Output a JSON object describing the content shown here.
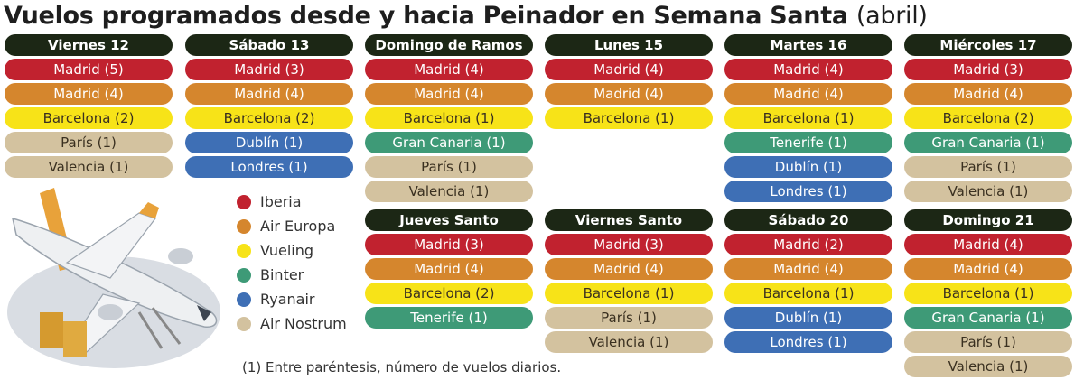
{
  "title": "Vuelos programados desde y hacia Peinador en Semana Santa",
  "title_suffix": "(abril)",
  "note": "(1) Entre paréntesis, número de vuelos diarios.",
  "airlines": {
    "iberia": {
      "label": "Iberia",
      "color": "#c1222f"
    },
    "aireuropa": {
      "label": "Air Europa",
      "color": "#d5862d"
    },
    "vueling": {
      "label": "Vueling",
      "color": "#f7e318"
    },
    "binter": {
      "label": "Binter",
      "color": "#3e9a77"
    },
    "ryanair": {
      "label": "Ryanair",
      "color": "#3e6fb5"
    },
    "airnostrum": {
      "label": "Air Nostrum",
      "color": "#d3c29f"
    }
  },
  "legend_order": [
    "iberia",
    "aireuropa",
    "vueling",
    "binter",
    "ryanair",
    "airnostrum"
  ],
  "days": [
    {
      "name": "Viernes 12",
      "flights": [
        {
          "label": "Madrid (5)",
          "airline": "iberia"
        },
        {
          "label": "Madrid (4)",
          "airline": "aireuropa"
        },
        {
          "label": "Barcelona (2)",
          "airline": "vueling"
        },
        {
          "label": "París (1)",
          "airline": "airnostrum"
        },
        {
          "label": "Valencia (1)",
          "airline": "airnostrum"
        }
      ]
    },
    {
      "name": "Sábado 13",
      "flights": [
        {
          "label": "Madrid (3)",
          "airline": "iberia"
        },
        {
          "label": "Madrid (4)",
          "airline": "aireuropa"
        },
        {
          "label": "Barcelona (2)",
          "airline": "vueling"
        },
        {
          "label": "Dublín (1)",
          "airline": "ryanair"
        },
        {
          "label": "Londres (1)",
          "airline": "ryanair"
        }
      ]
    },
    {
      "name": "Domingo de Ramos",
      "flights": [
        {
          "label": "Madrid (4)",
          "airline": "iberia"
        },
        {
          "label": "Madrid (4)",
          "airline": "aireuropa"
        },
        {
          "label": "Barcelona (1)",
          "airline": "vueling"
        },
        {
          "label": "Gran Canaria (1)",
          "airline": "binter"
        },
        {
          "label": "París (1)",
          "airline": "airnostrum"
        },
        {
          "label": "Valencia (1)",
          "airline": "airnostrum"
        }
      ]
    },
    {
      "name": "Lunes 15",
      "flights": [
        {
          "label": "Madrid (4)",
          "airline": "iberia"
        },
        {
          "label": "Madrid (4)",
          "airline": "aireuropa"
        },
        {
          "label": "Barcelona (1)",
          "airline": "vueling"
        }
      ]
    },
    {
      "name": "Martes 16",
      "flights": [
        {
          "label": "Madrid (4)",
          "airline": "iberia"
        },
        {
          "label": "Madrid (4)",
          "airline": "aireuropa"
        },
        {
          "label": "Barcelona (1)",
          "airline": "vueling"
        },
        {
          "label": "Tenerife (1)",
          "airline": "binter"
        },
        {
          "label": "Dublín (1)",
          "airline": "ryanair"
        },
        {
          "label": "Londres (1)",
          "airline": "ryanair"
        }
      ]
    },
    {
      "name": "Miércoles 17",
      "flights": [
        {
          "label": "Madrid (3)",
          "airline": "iberia"
        },
        {
          "label": "Madrid (4)",
          "airline": "aireuropa"
        },
        {
          "label": "Barcelona (2)",
          "airline": "vueling"
        },
        {
          "label": "Gran Canaria (1)",
          "airline": "binter"
        },
        {
          "label": "París (1)",
          "airline": "airnostrum"
        },
        {
          "label": "Valencia (1)",
          "airline": "airnostrum"
        }
      ]
    },
    {
      "name": "Jueves Santo",
      "flights": [
        {
          "label": "Madrid (3)",
          "airline": "iberia"
        },
        {
          "label": "Madrid (4)",
          "airline": "aireuropa"
        },
        {
          "label": "Barcelona (2)",
          "airline": "vueling"
        },
        {
          "label": "Tenerife (1)",
          "airline": "binter"
        }
      ]
    },
    {
      "name": "Viernes Santo",
      "flights": [
        {
          "label": "Madrid (3)",
          "airline": "iberia"
        },
        {
          "label": "Madrid (4)",
          "airline": "aireuropa"
        },
        {
          "label": "Barcelona (1)",
          "airline": "vueling"
        },
        {
          "label": "París (1)",
          "airline": "airnostrum"
        },
        {
          "label": "Valencia (1)",
          "airline": "airnostrum"
        }
      ]
    },
    {
      "name": "Sábado 20",
      "flights": [
        {
          "label": "Madrid (2)",
          "airline": "iberia"
        },
        {
          "label": "Madrid (4)",
          "airline": "aireuropa"
        },
        {
          "label": "Barcelona (1)",
          "airline": "vueling"
        },
        {
          "label": "Dublín (1)",
          "airline": "ryanair"
        },
        {
          "label": "Londres (1)",
          "airline": "ryanair"
        }
      ]
    },
    {
      "name": "Domingo 21",
      "flights": [
        {
          "label": "Madrid (4)",
          "airline": "iberia"
        },
        {
          "label": "Madrid (4)",
          "airline": "aireuropa"
        },
        {
          "label": "Barcelona (1)",
          "airline": "vueling"
        },
        {
          "label": "Gran Canaria (1)",
          "airline": "binter"
        },
        {
          "label": "París (1)",
          "airline": "airnostrum"
        },
        {
          "label": "Valencia (1)",
          "airline": "airnostrum"
        }
      ]
    }
  ]
}
